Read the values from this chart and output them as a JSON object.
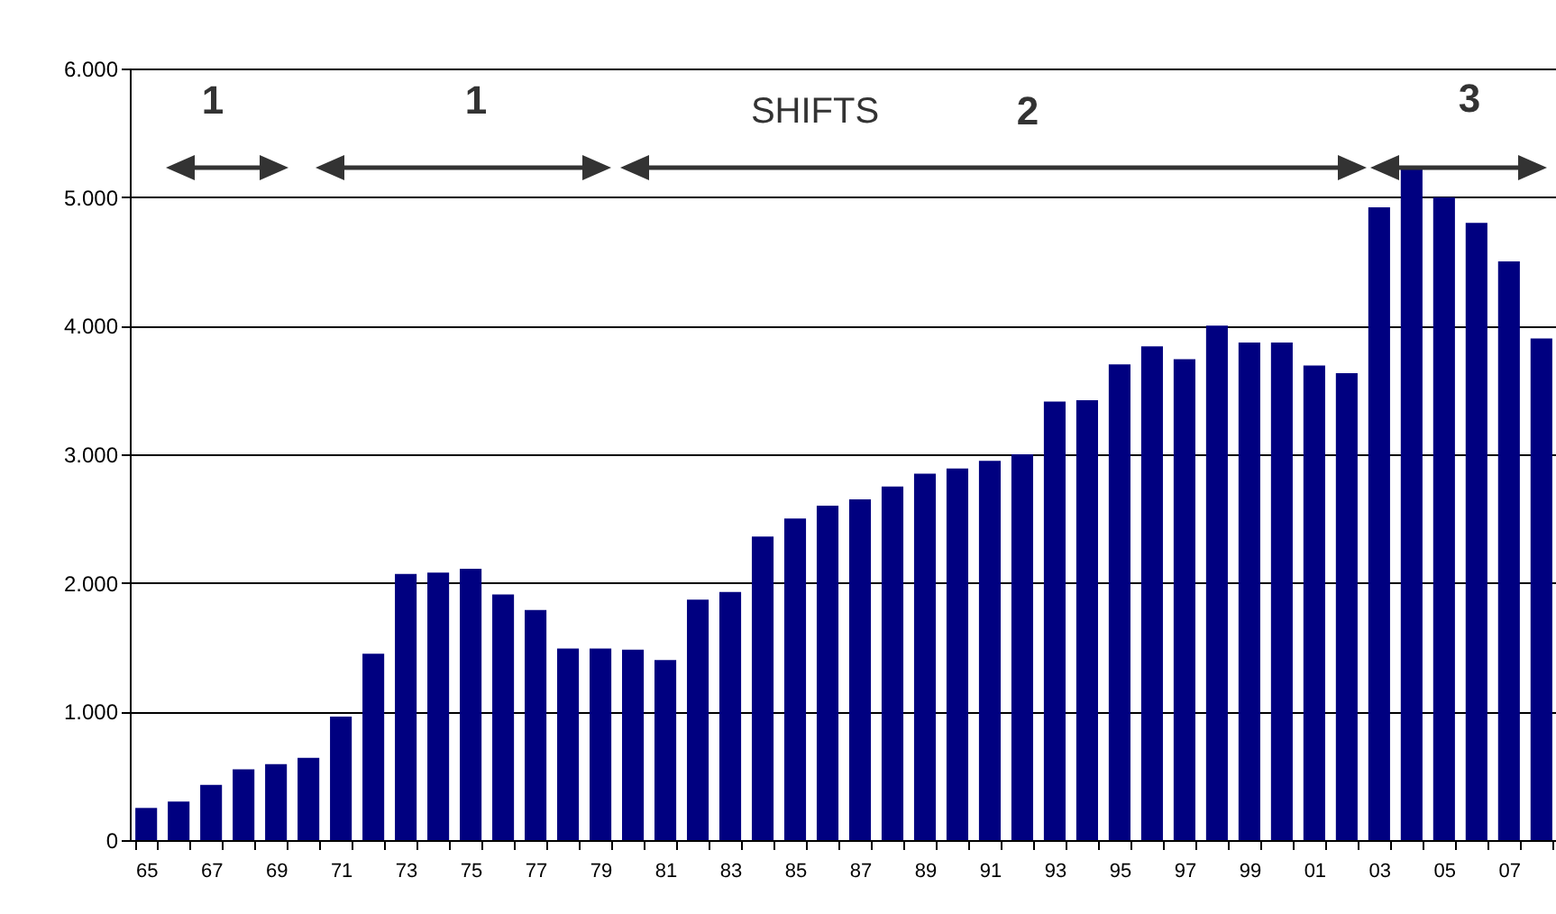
{
  "chart_data": {
    "type": "bar",
    "categories": [
      "65",
      null,
      "67",
      null,
      "69",
      null,
      "71",
      null,
      "73",
      null,
      "75",
      null,
      "77",
      null,
      "79",
      null,
      "81",
      null,
      "83",
      null,
      "85",
      null,
      "87",
      null,
      "89",
      null,
      "91",
      null,
      "93",
      null,
      "95",
      null,
      "97",
      null,
      "99",
      null,
      "01",
      null,
      "03",
      null,
      "05",
      null,
      "07",
      null
    ],
    "values": [
      250,
      300,
      430,
      550,
      590,
      640,
      960,
      1450,
      2070,
      2080,
      2110,
      1910,
      1790,
      1490,
      1490,
      1480,
      1400,
      1870,
      1930,
      2360,
      2500,
      2600,
      2650,
      2750,
      2850,
      2890,
      2950,
      3000,
      3410,
      3420,
      3700,
      3840,
      3740,
      4000,
      3870,
      3870,
      3690,
      3630,
      4920,
      5240,
      5000,
      4800,
      4500,
      3900
    ],
    "color": "#000080",
    "ylim": [
      0,
      6000
    ],
    "yticks": [
      {
        "value": 0,
        "label": "0"
      },
      {
        "value": 1000,
        "label": "1.000"
      },
      {
        "value": 2000,
        "label": "2.000"
      },
      {
        "value": 3000,
        "label": "3.000"
      },
      {
        "value": 4000,
        "label": "4.000"
      },
      {
        "value": 5000,
        "label": "5.000"
      },
      {
        "value": 6000,
        "label": "6.000"
      }
    ],
    "grid": "y",
    "annotations": [
      "1",
      "1",
      "SHIFTS",
      "2",
      "3"
    ]
  }
}
